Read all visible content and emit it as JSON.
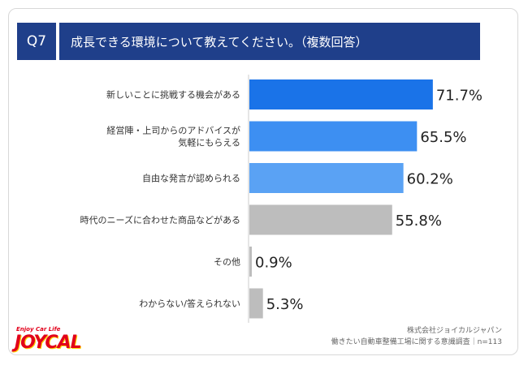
{
  "header": {
    "question_number": "Q7",
    "title": "成長できる環境について教えてください。（複数回答）"
  },
  "chart_data": {
    "type": "bar",
    "orientation": "horizontal",
    "categories": [
      [
        "新しいことに挑戦する機会がある"
      ],
      [
        "経営陣・上司からのアドバイスが",
        "気軽にもらえる"
      ],
      [
        "自由な発言が認められる"
      ],
      [
        "時代のニーズに合わせた商品などがある"
      ],
      [
        "その他"
      ],
      [
        "わからない/答えられない"
      ]
    ],
    "values": [
      71.7,
      65.5,
      60.2,
      55.8,
      0.9,
      5.3
    ],
    "value_labels": [
      "71.7%",
      "65.5%",
      "60.2%",
      "55.8%",
      "0.9%",
      "5.3%"
    ],
    "bar_colors": [
      "#1a73e8",
      "#3d8ff2",
      "#5aa2f4",
      "#bdbdbd",
      "#bdbdbd",
      "#bdbdbd"
    ],
    "xlim": [
      0,
      100
    ],
    "grid": false
  },
  "source": {
    "line1": "株式会社ジョイカルジャパン",
    "line2": "働きたい自動車整備工場に関する意識調査｜n=113"
  },
  "logo": {
    "tagline": "Enjoy Car Life",
    "text": "JOYCAL"
  },
  "colors": {
    "header_bg": "#1f3f8a",
    "axis_line": "#cccccc",
    "label_text": "#333333"
  }
}
